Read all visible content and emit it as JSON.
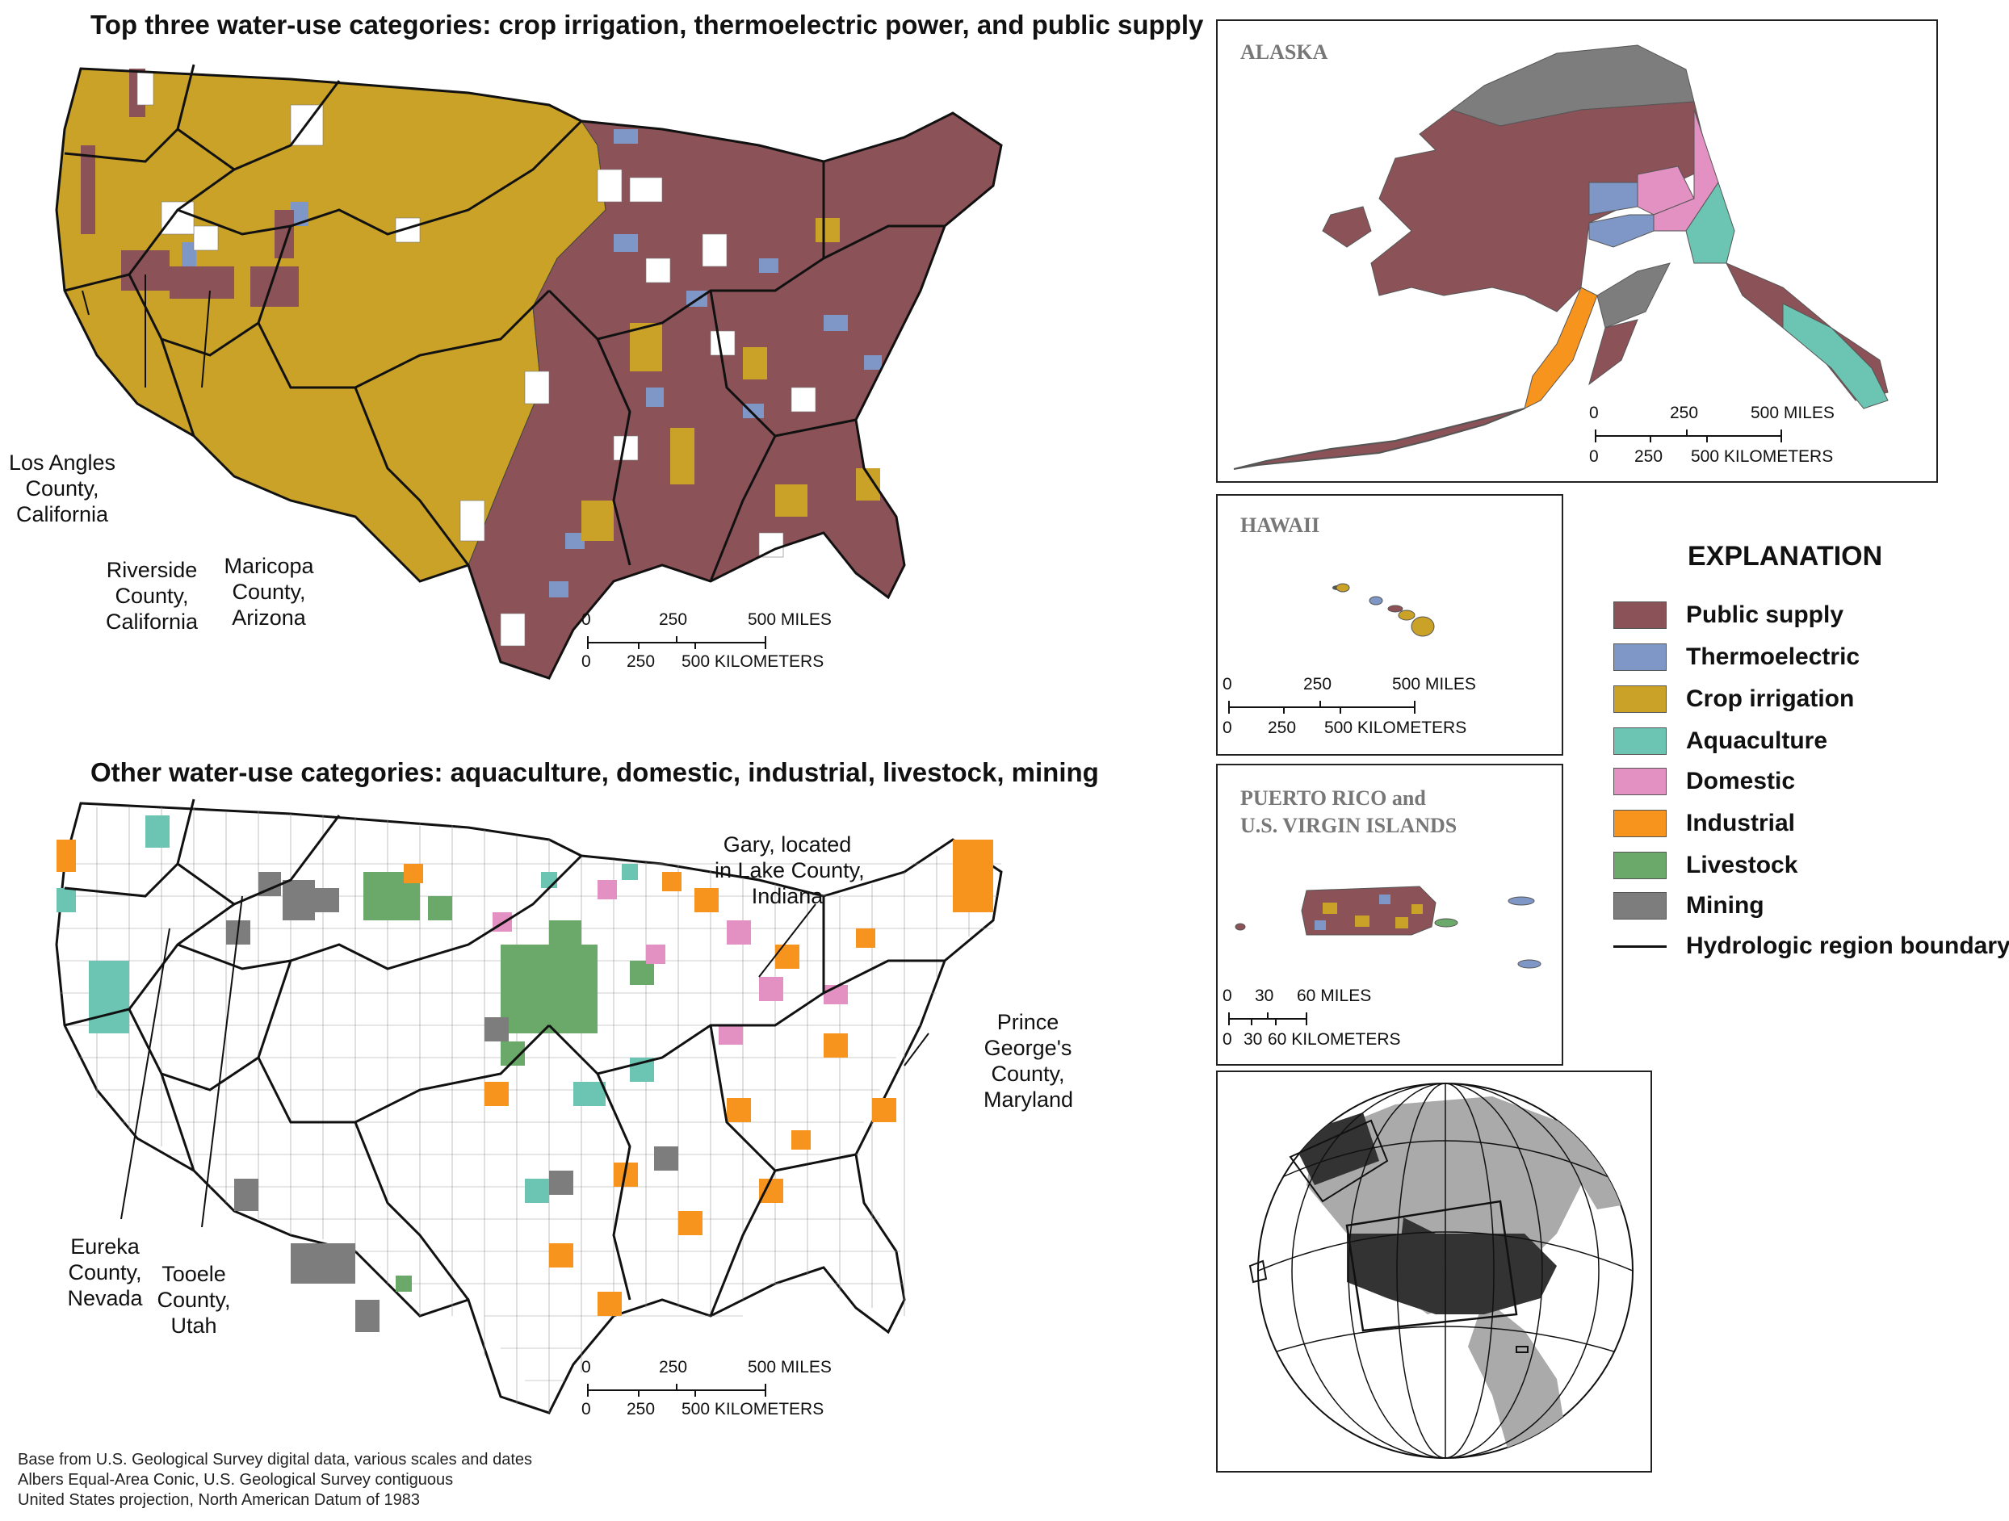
{
  "top_map": {
    "title": "Top three water-use categories: crop irrigation, thermoelectric power, and public supply",
    "callouts": [
      {
        "id": "los-angeles",
        "lines": [
          "Los Angles",
          "County,",
          "California"
        ]
      },
      {
        "id": "riverside",
        "lines": [
          "Riverside",
          "County,",
          "California"
        ]
      },
      {
        "id": "maricopa",
        "lines": [
          "Maricopa",
          "County,",
          "Arizona"
        ]
      }
    ],
    "scale": {
      "miles_ticks": [
        "0",
        "250",
        "500 MILES"
      ],
      "km_ticks": [
        "0",
        "250",
        "500 KILOMETERS"
      ]
    }
  },
  "bottom_map": {
    "title": "Other water-use categories: aquaculture, domestic, industrial, livestock, mining",
    "callouts": [
      {
        "id": "gary",
        "lines": [
          "Gary, located",
          "in Lake County,",
          "Indiana"
        ]
      },
      {
        "id": "prince-georges",
        "lines": [
          "Prince",
          "George's",
          "County,",
          "Maryland"
        ]
      },
      {
        "id": "eureka",
        "lines": [
          "Eureka",
          "County,",
          "Nevada"
        ]
      },
      {
        "id": "tooele",
        "lines": [
          "Tooele",
          "County,",
          "Utah"
        ]
      }
    ],
    "scale": {
      "miles_ticks": [
        "0",
        "250",
        "500 MILES"
      ],
      "km_ticks": [
        "0",
        "250",
        "500 KILOMETERS"
      ]
    }
  },
  "insets": {
    "alaska": {
      "title": "ALASKA",
      "scale": {
        "miles_ticks": [
          "0",
          "250",
          "500 MILES"
        ],
        "km_ticks": [
          "0",
          "250",
          "500 KILOMETERS"
        ]
      }
    },
    "hawaii": {
      "title": "HAWAII",
      "scale": {
        "miles_ticks": [
          "0",
          "250",
          "500 MILES"
        ],
        "km_ticks": [
          "0",
          "250",
          "500 KILOMETERS"
        ]
      }
    },
    "puerto_rico": {
      "title_lines": [
        "PUERTO RICO and",
        "U.S. VIRGIN ISLANDS"
      ],
      "scale": {
        "miles_ticks": [
          "0",
          "30",
          "60 MILES"
        ],
        "km_ticks": [
          "0",
          "30",
          "60 KILOMETERS"
        ]
      }
    }
  },
  "legend": {
    "title": "EXPLANATION",
    "items": [
      {
        "label": "Public supply",
        "color": "#8b5258"
      },
      {
        "label": "Thermoelectric",
        "color": "#7f97c7"
      },
      {
        "label": "Crop irrigation",
        "color": "#c9a227"
      },
      {
        "label": "Aquaculture",
        "color": "#6cc4b2"
      },
      {
        "label": "Domestic",
        "color": "#e391c2"
      },
      {
        "label": "Industrial",
        "color": "#f7941d"
      },
      {
        "label": "Livestock",
        "color": "#6aa96a"
      },
      {
        "label": "Mining",
        "color": "#7d7d7d"
      }
    ],
    "boundary_label": "Hydrologic region boundary"
  },
  "credits": [
    "Base from U.S. Geological Survey digital data, various scales and dates",
    "Albers Equal-Area Conic, U.S. Geological Survey contiguous",
    "United States projection, North American Datum of 1983"
  ]
}
